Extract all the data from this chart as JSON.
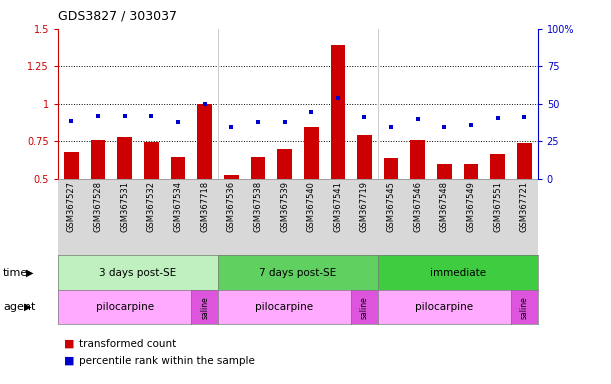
{
  "title": "GDS3827 / 303037",
  "samples": [
    "GSM367527",
    "GSM367528",
    "GSM367531",
    "GSM367532",
    "GSM367534",
    "GSM367718",
    "GSM367536",
    "GSM367538",
    "GSM367539",
    "GSM367540",
    "GSM367541",
    "GSM367719",
    "GSM367545",
    "GSM367546",
    "GSM367548",
    "GSM367549",
    "GSM367551",
    "GSM367721"
  ],
  "red_bars": [
    0.68,
    0.755,
    0.775,
    0.745,
    0.645,
    1.0,
    0.525,
    0.645,
    0.695,
    0.845,
    1.395,
    0.79,
    0.635,
    0.755,
    0.595,
    0.595,
    0.665,
    0.735
  ],
  "blue_dots": [
    0.885,
    0.92,
    0.915,
    0.915,
    0.875,
    1.0,
    0.845,
    0.875,
    0.875,
    0.945,
    1.035,
    0.91,
    0.845,
    0.895,
    0.845,
    0.855,
    0.905,
    0.91
  ],
  "ylim_left": [
    0.5,
    1.5
  ],
  "ylim_right": [
    0,
    100
  ],
  "yticks_left": [
    0.5,
    0.75,
    1.0,
    1.25,
    1.5
  ],
  "yticks_right": [
    0,
    25,
    50,
    75,
    100
  ],
  "ytick_labels_left": [
    "0.5",
    "0.75",
    "1",
    "1.25",
    "1.5"
  ],
  "ytick_labels_right": [
    "0",
    "25",
    "50",
    "75",
    "100%"
  ],
  "bar_color": "#cc0000",
  "dot_color": "#0000cc",
  "bg_color": "#ffffff",
  "xtick_bg": "#d8d8d8",
  "dotted_lines": [
    0.75,
    1.0,
    1.25
  ],
  "time_group_defs": [
    {
      "start": 0,
      "end": 5,
      "label": "3 days post-SE",
      "color": "#c0f0c0"
    },
    {
      "start": 6,
      "end": 11,
      "label": "7 days post-SE",
      "color": "#60d060"
    },
    {
      "start": 12,
      "end": 17,
      "label": "immediate",
      "color": "#40cc40"
    }
  ],
  "agent_group_defs": [
    {
      "start": 0,
      "end": 4,
      "label": "pilocarpine",
      "color": "#ffaaff"
    },
    {
      "start": 5,
      "end": 5,
      "label": "saline",
      "color": "#dd55dd"
    },
    {
      "start": 6,
      "end": 10,
      "label": "pilocarpine",
      "color": "#ffaaff"
    },
    {
      "start": 11,
      "end": 11,
      "label": "saline",
      "color": "#dd55dd"
    },
    {
      "start": 12,
      "end": 16,
      "label": "pilocarpine",
      "color": "#ffaaff"
    },
    {
      "start": 17,
      "end": 17,
      "label": "saline",
      "color": "#dd55dd"
    }
  ],
  "n_samples": 18
}
